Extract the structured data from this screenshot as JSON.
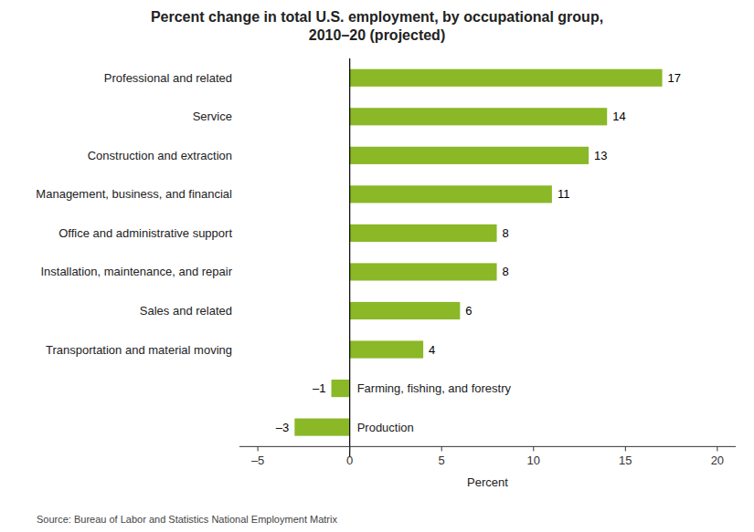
{
  "chart_data": {
    "type": "bar",
    "orientation": "horizontal",
    "title": "Percent change in total U.S. employment, by occupational group,\n2010–20 (projected)",
    "categories": [
      "Professional and related",
      "Service",
      "Construction and extraction",
      "Management, business, and financial",
      "Office and administrative support",
      "Installation, maintenance, and repair",
      "Sales and related",
      "Transportation and material moving",
      "Farming, fishing, and forestry",
      "Production"
    ],
    "values": [
      17,
      14,
      13,
      11,
      8,
      8,
      6,
      4,
      -1,
      -3
    ],
    "value_labels": [
      "17",
      "14",
      "13",
      "11",
      "8",
      "8",
      "6",
      "4",
      "–1",
      "–3"
    ],
    "data_labels": true,
    "color": "#8ab827",
    "xlabel": "Percent",
    "xlim": [
      -6,
      21
    ],
    "xticks": [
      {
        "value": -5,
        "label": "–5"
      },
      0,
      5,
      10,
      15,
      20
    ],
    "grid": false,
    "annotations": [
      "Source: Bureau of Labor and Statistics National Employment Matrix"
    ]
  }
}
